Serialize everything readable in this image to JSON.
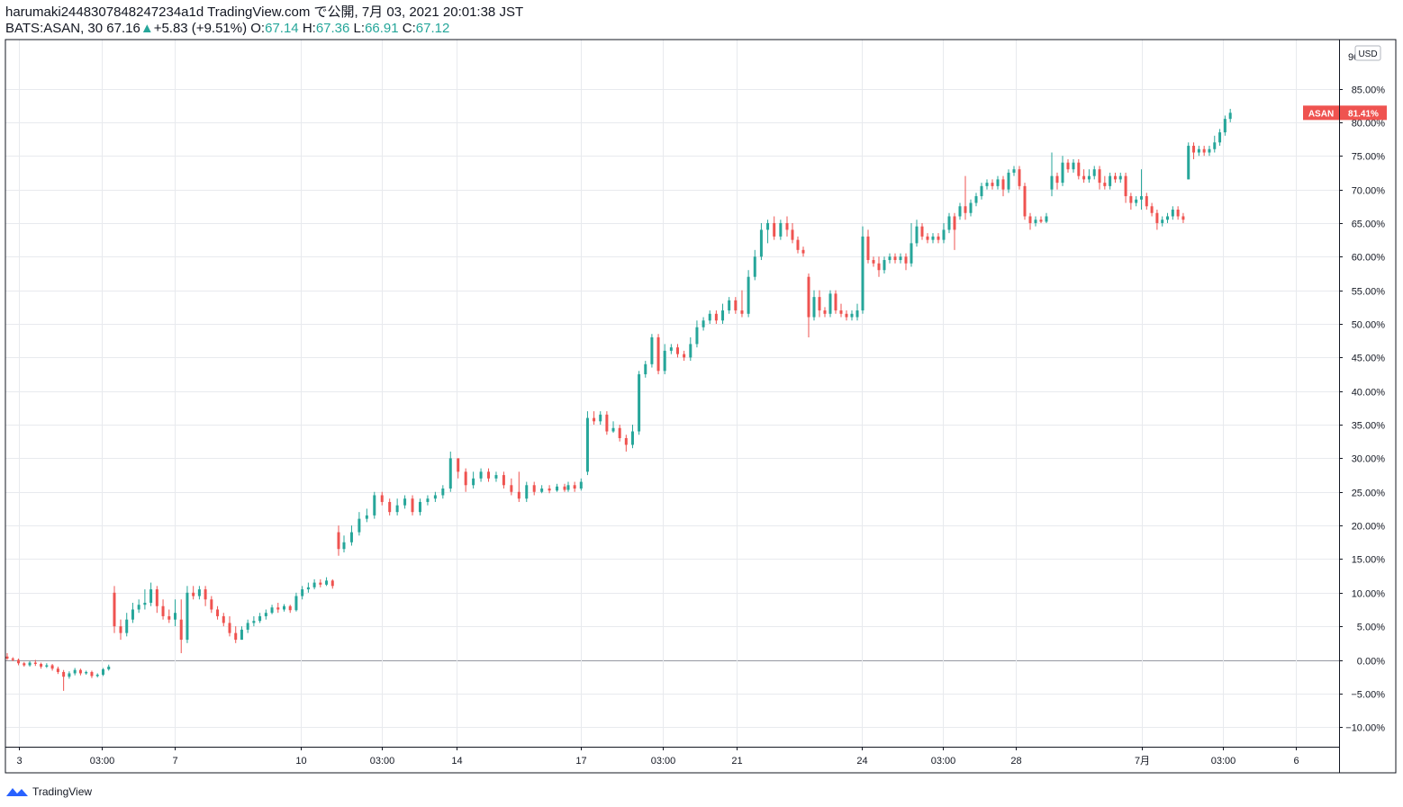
{
  "header": {
    "publisher_line": "harumaki2448307848247234a1d TradingView.com で公開, 7月 03, 2021 20:01:38 JST",
    "symbol": "BATS:ASAN, 30",
    "price": "67.16",
    "up_arrow": "▲",
    "change": "+5.83 (+9.51%)",
    "o_label": "O:",
    "o_value": "67.14",
    "h_label": "H:",
    "h_value": "67.36",
    "l_label": "L:",
    "l_value": "66.91",
    "c_label": "C:",
    "c_value": "67.12"
  },
  "price_axis": {
    "currency": "USD",
    "top_partial_label": "90",
    "last_tag_name": "ASAN",
    "last_tag_value": "81.41%"
  },
  "footer": {
    "brand": "TradingView"
  },
  "colors": {
    "up": "#26a69a",
    "down": "#ef5350",
    "grid": "#e8eaee",
    "axis": "#131722",
    "tag": "#ef5350"
  },
  "chart_data": {
    "type": "candlestick",
    "y_unit": "percent change",
    "y_ticks": [
      -10,
      -5,
      0,
      5,
      10,
      15,
      20,
      25,
      30,
      35,
      40,
      45,
      50,
      55,
      60,
      65,
      70,
      75,
      80,
      85
    ],
    "y_tick_labels": [
      "−10.00%",
      "−5.00%",
      "0.00%",
      "5.00%",
      "10.00%",
      "15.00%",
      "20.00%",
      "25.00%",
      "30.00%",
      "35.00%",
      "40.00%",
      "45.00%",
      "50.00%",
      "55.00%",
      "60.00%",
      "65.00%",
      "70.00%",
      "75.00%",
      "80.00%",
      "85.00%"
    ],
    "x_tick_labels": [
      "3",
      "03:00",
      "7",
      "10",
      "03:00",
      "14",
      "17",
      "03:00",
      "21",
      "24",
      "03:00",
      "28",
      "7月",
      "03:00",
      "6"
    ],
    "ylim": [
      -13,
      91
    ],
    "last_value": 81.41,
    "candles": [
      [
        0.5,
        0.2,
        1,
        0
      ],
      [
        0.2,
        0,
        0.4,
        -0.2
      ],
      [
        0,
        -0.5,
        0.2,
        -0.8
      ],
      [
        -0.5,
        -0.8,
        -0.3,
        -1
      ],
      [
        -0.8,
        -0.4,
        -0.2,
        -1
      ],
      [
        -0.4,
        -0.6,
        0,
        -0.9
      ],
      [
        -0.6,
        -1,
        -0.4,
        -1.3
      ],
      [
        -1,
        -0.8,
        -0.5,
        -1.2
      ],
      [
        -0.8,
        -1.3,
        -0.6,
        -1.6
      ],
      [
        -1.3,
        -1.8,
        -1,
        -2.1
      ],
      [
        -1.8,
        -2.5,
        -1.5,
        -4.6
      ],
      [
        -2.5,
        -2,
        -1.7,
        -2.8
      ],
      [
        -2,
        -1.5,
        -1.2,
        -2.3
      ],
      [
        -1.5,
        -2,
        -1.3,
        -2.3
      ],
      [
        -2,
        -1.8,
        -1.6,
        -2.2
      ],
      [
        -1.8,
        -2.4,
        -1.6,
        -2.7
      ],
      [
        -2.4,
        -2.2,
        -2,
        -2.6
      ],
      [
        -2.2,
        -1.4,
        -1.2,
        -2.4
      ],
      [
        -1.4,
        -1,
        -0.7,
        -1.6
      ],
      [
        10,
        5,
        11,
        4
      ],
      [
        5,
        4,
        6,
        3
      ],
      [
        4,
        6,
        7,
        3.5
      ],
      [
        6,
        7.5,
        8.5,
        5.5
      ],
      [
        7.5,
        8.2,
        9,
        7
      ],
      [
        8.2,
        8.5,
        10.5,
        7.5
      ],
      [
        8.5,
        10.5,
        11.5,
        8
      ],
      [
        10.5,
        8,
        11,
        7
      ],
      [
        8,
        6.5,
        9,
        6
      ],
      [
        6.5,
        6,
        7.5,
        5.5
      ],
      [
        6,
        7,
        9,
        5
      ],
      [
        6,
        3,
        9,
        1
      ],
      [
        3,
        10,
        11,
        2.5
      ],
      [
        10,
        9.5,
        11,
        9
      ],
      [
        9.5,
        10.5,
        11,
        9
      ],
      [
        10.5,
        9,
        11,
        8
      ],
      [
        9,
        7.5,
        9.5,
        7
      ],
      [
        7.5,
        6.5,
        8,
        6
      ],
      [
        6.5,
        5.5,
        7,
        5
      ],
      [
        5.5,
        4,
        6.5,
        3.5
      ],
      [
        4,
        3,
        5,
        2.5
      ],
      [
        3,
        4.5,
        5,
        3
      ],
      [
        4.5,
        5.5,
        6,
        4
      ],
      [
        5.5,
        5.8,
        6.5,
        5
      ],
      [
        5.8,
        6.5,
        7,
        5.5
      ],
      [
        6.5,
        7,
        7.5,
        6
      ],
      [
        7,
        7.8,
        8.2,
        6.8
      ],
      [
        7.8,
        7.5,
        8.5,
        7
      ],
      [
        7.5,
        8,
        8.3,
        7.2
      ],
      [
        8,
        7.4,
        8.2,
        7
      ],
      [
        7.4,
        9.5,
        10,
        7.2
      ],
      [
        9.5,
        10.5,
        11,
        9
      ],
      [
        10.5,
        10.8,
        11.5,
        10
      ],
      [
        10.8,
        11.5,
        12,
        10.5
      ],
      [
        11.5,
        11.2,
        12,
        10.8
      ],
      [
        11.2,
        11.8,
        12.3,
        11
      ],
      [
        11.8,
        11,
        12,
        10.6
      ],
      [
        19,
        16.5,
        20,
        15.5
      ],
      [
        16.5,
        17.5,
        18.5,
        16
      ],
      [
        17.5,
        19,
        20,
        17
      ],
      [
        19,
        21,
        22,
        18.5
      ],
      [
        21,
        21.5,
        22.5,
        20.5
      ],
      [
        21.5,
        24.5,
        25,
        21
      ],
      [
        24.5,
        23.5,
        25,
        23
      ],
      [
        23.5,
        22,
        24,
        21.5
      ],
      [
        22,
        23,
        24,
        21.5
      ],
      [
        23,
        24,
        24.5,
        22.5
      ],
      [
        24,
        22,
        24.5,
        21.5
      ],
      [
        22,
        23.5,
        24,
        21.5
      ],
      [
        23.5,
        24,
        24.5,
        23
      ],
      [
        24,
        24.5,
        25,
        23.5
      ],
      [
        24.5,
        25.5,
        26,
        24
      ],
      [
        25.5,
        30,
        31,
        25
      ],
      [
        30,
        28,
        30,
        27
      ],
      [
        28,
        26,
        28.5,
        25
      ],
      [
        26,
        27,
        28,
        25.5
      ],
      [
        27,
        28,
        28.5,
        26.5
      ],
      [
        28,
        27,
        28.5,
        26.5
      ],
      [
        27,
        27.5,
        28,
        26.5
      ],
      [
        27.5,
        26,
        28,
        25.5
      ],
      [
        26,
        25,
        27,
        24.5
      ],
      [
        25,
        24,
        28,
        23.5
      ],
      [
        24,
        26,
        26.5,
        23.5
      ],
      [
        26,
        25,
        26.5,
        24.5
      ],
      [
        25,
        25.5,
        26,
        24.8
      ],
      [
        25.5,
        25.2,
        26,
        24.8
      ],
      [
        25.2,
        25.8,
        26.2,
        25
      ],
      [
        25.8,
        25.3,
        26.2,
        25
      ],
      [
        25.3,
        26,
        26.5,
        25
      ],
      [
        26,
        25.5,
        26.5,
        25
      ],
      [
        25.5,
        26.5,
        27,
        25.2
      ],
      [
        28,
        36,
        37,
        27.5
      ],
      [
        36,
        35.5,
        37,
        35
      ],
      [
        35.5,
        36.5,
        37,
        35
      ],
      [
        36.5,
        34,
        37,
        33.5
      ],
      [
        34,
        34.5,
        35.5,
        33.8
      ],
      [
        34.5,
        33,
        35,
        32.5
      ],
      [
        33,
        32,
        33.5,
        31
      ],
      [
        32,
        34,
        35,
        31.5
      ],
      [
        34,
        42.5,
        43,
        33.5
      ],
      [
        42.5,
        44,
        44.5,
        42
      ],
      [
        44,
        48,
        48.5,
        43.5
      ],
      [
        48,
        43,
        48.5,
        42.5
      ],
      [
        43,
        46,
        47,
        42.5
      ],
      [
        46,
        46.5,
        47,
        45.5
      ],
      [
        46.5,
        45.5,
        47,
        45
      ],
      [
        45.5,
        45,
        46,
        44.5
      ],
      [
        45,
        47,
        48,
        44.5
      ],
      [
        47,
        49.5,
        50.5,
        46.5
      ],
      [
        49.5,
        50.5,
        51,
        49
      ],
      [
        50.5,
        51.5,
        52,
        50
      ],
      [
        51.5,
        50.5,
        52,
        50
      ],
      [
        50.5,
        52,
        53,
        50
      ],
      [
        52,
        53.5,
        54,
        51.5
      ],
      [
        53.5,
        52,
        54,
        51.5
      ],
      [
        52,
        51.5,
        55,
        51
      ],
      [
        51.5,
        57,
        58,
        51
      ],
      [
        57,
        60,
        61,
        56.5
      ],
      [
        60,
        64,
        65,
        59.5
      ],
      [
        64,
        65,
        65.5,
        62
      ],
      [
        65,
        63,
        66,
        62.5
      ],
      [
        63,
        65,
        65.5,
        62.5
      ],
      [
        65,
        64,
        66,
        63
      ],
      [
        64,
        62.5,
        65,
        62
      ],
      [
        62.5,
        61,
        63,
        60.5
      ],
      [
        61,
        60.5,
        61.5,
        60
      ],
      [
        57,
        51,
        57.5,
        48
      ],
      [
        51,
        54,
        55,
        50.5
      ],
      [
        54,
        52,
        55,
        51
      ],
      [
        52,
        51.5,
        52.5,
        51
      ],
      [
        51.5,
        54.5,
        55,
        51
      ],
      [
        54.5,
        52,
        55,
        51.5
      ],
      [
        52,
        51.5,
        53,
        51
      ],
      [
        51.5,
        51,
        52,
        50.5
      ],
      [
        51,
        51.5,
        52,
        50.5
      ],
      [
        51,
        52,
        53,
        50.5
      ],
      [
        52,
        63,
        64.5,
        51.5
      ],
      [
        63,
        59.5,
        64,
        59
      ],
      [
        59.5,
        59,
        60,
        58.5
      ],
      [
        59,
        58,
        60,
        57
      ],
      [
        58,
        59.5,
        60,
        57.5
      ],
      [
        59.5,
        60,
        60.5,
        59
      ],
      [
        60,
        59.5,
        60.5,
        59
      ],
      [
        59.5,
        60,
        60.5,
        59
      ],
      [
        60,
        59,
        60.5,
        58
      ],
      [
        59,
        62,
        65,
        58.5
      ],
      [
        62,
        64.5,
        65.5,
        61.5
      ],
      [
        64.5,
        63,
        65,
        62.5
      ],
      [
        63,
        62.5,
        63.5,
        62
      ],
      [
        62.5,
        63,
        63.5,
        62
      ],
      [
        63,
        62.5,
        63.5,
        62
      ],
      [
        62.5,
        64,
        65,
        62
      ],
      [
        64,
        66,
        66.5,
        63.5
      ],
      [
        66,
        64,
        66.5,
        61
      ],
      [
        66,
        67.5,
        68,
        65.5
      ],
      [
        67.5,
        66.5,
        72,
        65.5
      ],
      [
        66.5,
        68,
        68.5,
        66
      ],
      [
        68,
        69,
        69.5,
        67.5
      ],
      [
        69,
        70.5,
        71,
        68.5
      ],
      [
        70.5,
        71,
        71.5,
        70
      ],
      [
        71,
        70.5,
        71.5,
        70
      ],
      [
        70.5,
        71.5,
        72,
        70
      ],
      [
        71.5,
        70,
        72,
        69
      ],
      [
        70,
        72.5,
        73,
        69.5
      ],
      [
        72.5,
        73,
        73.5,
        72
      ],
      [
        73,
        70.5,
        73.5,
        70
      ],
      [
        70.5,
        66,
        71,
        65.5
      ],
      [
        66,
        65,
        66.5,
        64
      ],
      [
        65,
        65.5,
        66,
        64.5
      ],
      [
        65.5,
        65.2,
        66,
        65
      ],
      [
        65.2,
        66,
        66.5,
        65
      ],
      [
        70,
        72,
        75.5,
        69
      ],
      [
        72,
        71,
        72.5,
        70
      ],
      [
        71,
        74,
        75,
        70.5
      ],
      [
        74,
        73,
        74.5,
        72.5
      ],
      [
        73,
        74,
        74.5,
        72.5
      ],
      [
        74,
        72,
        74.5,
        71.5
      ],
      [
        72,
        71.5,
        73,
        71
      ],
      [
        71.5,
        72,
        73,
        71
      ],
      [
        72,
        73,
        73.5,
        71.5
      ],
      [
        73,
        71,
        73.5,
        70
      ],
      [
        71,
        70.5,
        72,
        70
      ],
      [
        70.5,
        72,
        72.5,
        70
      ],
      [
        72,
        71.5,
        72.5,
        71
      ],
      [
        71.5,
        72,
        72.5,
        71
      ],
      [
        72,
        69,
        72.5,
        68
      ],
      [
        69,
        68,
        69.5,
        67
      ],
      [
        68,
        68.5,
        69,
        67.5
      ],
      [
        68.5,
        69,
        73,
        67
      ],
      [
        69,
        67.5,
        69.5,
        67
      ],
      [
        67.5,
        66.5,
        68,
        66
      ],
      [
        66.5,
        65,
        67,
        64
      ],
      [
        65,
        65.5,
        66,
        64.5
      ],
      [
        65.5,
        66,
        66.5,
        65
      ],
      [
        66,
        67,
        67.5,
        65.5
      ],
      [
        67,
        66,
        67.5,
        65.5
      ],
      [
        66,
        65.5,
        66.5,
        65
      ],
      [
        71.5,
        76.5,
        77,
        71.5
      ],
      [
        76.5,
        75.5,
        77,
        74.5
      ],
      [
        75.5,
        76,
        76.5,
        75
      ],
      [
        76,
        75.5,
        76.5,
        75
      ],
      [
        75.5,
        76,
        76.5,
        75
      ],
      [
        76,
        77,
        78,
        75.5
      ],
      [
        77,
        78.5,
        79,
        76.5
      ],
      [
        78.5,
        80.5,
        81,
        78
      ],
      [
        80.5,
        81.41,
        82,
        80
      ]
    ]
  }
}
